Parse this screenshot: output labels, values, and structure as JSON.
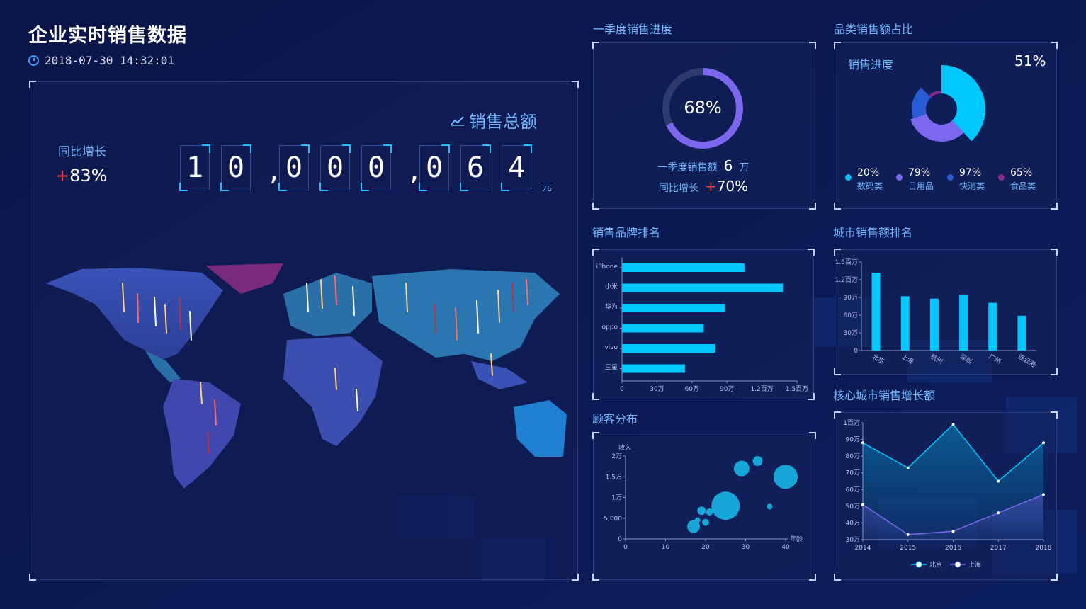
{
  "header": {
    "title": "企业实时销售数据",
    "datetime": "2018-07-30 14:32:01"
  },
  "main": {
    "total_label": "销售总额",
    "yoy_label": "同比增长",
    "yoy_sign": "+",
    "yoy_value": "83%",
    "total_digits": [
      "1",
      "0",
      ",",
      "0",
      "0",
      "0",
      ",",
      "0",
      "6",
      "4"
    ],
    "unit": "元"
  },
  "colors": {
    "bg": "#0a1448",
    "accent": "#00c8ff",
    "purple": "#7b68ee",
    "red": "#ff3b3b",
    "label": "#6fb8ff"
  },
  "q1": {
    "title": "一季度销售进度",
    "percent": "68%",
    "progress": 0.68,
    "sales_label": "一季度销售额",
    "sales_value": "6",
    "sales_unit": "万",
    "yoy_label": "同比增长",
    "yoy_sign": "+",
    "yoy_value": "70%"
  },
  "category": {
    "title": "品类销售额占比",
    "progress_label": "销售进度",
    "progress_value": "51%",
    "items": [
      {
        "pct": "20%",
        "name": "数码类",
        "color": "#00c8ff",
        "share": 0.38
      },
      {
        "pct": "79%",
        "name": "日用品",
        "color": "#7b68ee",
        "share": 0.32
      },
      {
        "pct": "97%",
        "name": "快消类",
        "color": "#2a5bd7",
        "share": 0.18
      },
      {
        "pct": "65%",
        "name": "食品类",
        "color": "#8a2a8a",
        "share": 0.12
      }
    ]
  },
  "chart_data": [
    {
      "type": "bar",
      "title": "销售品牌排名",
      "orientation": "horizontal",
      "categories": [
        "iPhone",
        "小米",
        "华为",
        "oppo",
        "vivo",
        "三星"
      ],
      "values": [
        1050000,
        1380000,
        880000,
        700000,
        800000,
        540000
      ],
      "xticks": [
        "0",
        "30万",
        "60万",
        "90万",
        "1.2百万",
        "1.5百万"
      ],
      "xlim": [
        0,
        1500000
      ]
    },
    {
      "type": "bar",
      "title": "城市销售额排名",
      "categories": [
        "北京",
        "上海",
        "杭州",
        "深圳",
        "广州",
        "连云港"
      ],
      "values": [
        1320000,
        920000,
        880000,
        950000,
        810000,
        590000
      ],
      "yticks": [
        "0",
        "30万",
        "60万",
        "90万",
        "1.2百万",
        "1.5百万"
      ],
      "ylim": [
        0,
        1500000
      ]
    },
    {
      "type": "scatter",
      "title": "顾客分布",
      "xlabel": "年龄",
      "ylabel": "收入",
      "xticks": [
        "0",
        "10",
        "20",
        "30",
        "40"
      ],
      "yticks": [
        "0",
        "5,000",
        "1万",
        "1.5万",
        "2万"
      ],
      "xlim": [
        0,
        40
      ],
      "ylim": [
        0,
        20000
      ],
      "points": [
        {
          "x": 17,
          "y": 3000,
          "r": 9
        },
        {
          "x": 18,
          "y": 4500,
          "r": 4
        },
        {
          "x": 19,
          "y": 6800,
          "r": 6
        },
        {
          "x": 20,
          "y": 4000,
          "r": 5
        },
        {
          "x": 21,
          "y": 6500,
          "r": 5
        },
        {
          "x": 25,
          "y": 8000,
          "r": 20
        },
        {
          "x": 29,
          "y": 17000,
          "r": 11
        },
        {
          "x": 33,
          "y": 18800,
          "r": 7
        },
        {
          "x": 36,
          "y": 7800,
          "r": 4
        },
        {
          "x": 40,
          "y": 15000,
          "r": 17
        }
      ]
    },
    {
      "type": "line",
      "title": "核心城市销售增长额",
      "x": [
        "2014",
        "2015",
        "2016",
        "2017",
        "2018"
      ],
      "yticks": [
        "30万",
        "40万",
        "50万",
        "60万",
        "70万",
        "80万",
        "90万",
        "1百万"
      ],
      "ylim": [
        300000,
        1000000
      ],
      "series": [
        {
          "name": "北京",
          "color": "#00c8ff",
          "values": [
            880000,
            730000,
            990000,
            650000,
            880000
          ]
        },
        {
          "name": "上海",
          "color": "#7b68ee",
          "values": [
            510000,
            330000,
            350000,
            460000,
            570000
          ]
        }
      ]
    }
  ]
}
